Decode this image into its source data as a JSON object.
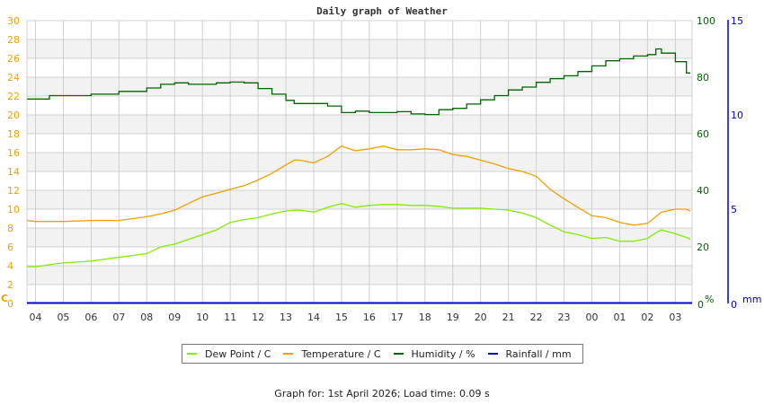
{
  "title": "Daily graph of Weather",
  "footer": "Graph for: 1st April 2026; Load time: 0.09 s",
  "colors": {
    "dew_point": "#80ee00",
    "temperature": "#f0a000",
    "humidity": "#006400",
    "rainfall": "#0000cc",
    "band": "#f2f2f2",
    "grid": "#d0d0d0"
  },
  "legend": [
    {
      "label": "Dew Point / C",
      "color": "#80ee00"
    },
    {
      "label": "Temperature / C",
      "color": "#f0a000"
    },
    {
      "label": "Humidity / %",
      "color": "#006400"
    },
    {
      "label": "Rainfall / mm",
      "color": "#0000cc"
    }
  ],
  "chart_data": {
    "type": "line",
    "title": "Daily graph of Weather",
    "xlabel": "",
    "x_ticks": [
      "04",
      "05",
      "06",
      "07",
      "08",
      "09",
      "10",
      "11",
      "12",
      "13",
      "14",
      "15",
      "16",
      "17",
      "18",
      "19",
      "20",
      "21",
      "22",
      "23",
      "00",
      "01",
      "02",
      "03"
    ],
    "axes": {
      "left": {
        "label": "C",
        "ticks": [
          0,
          2,
          4,
          6,
          8,
          10,
          12,
          14,
          16,
          18,
          20,
          22,
          24,
          26,
          28,
          30
        ],
        "ylim": [
          0,
          30
        ],
        "color": "#f0a000"
      },
      "right1": {
        "label": "%",
        "ticks": [
          0,
          20,
          40,
          60,
          80,
          100
        ],
        "ylim": [
          0,
          100
        ],
        "color": "#006400"
      },
      "right2": {
        "label": "mm",
        "ticks": [
          0,
          5,
          10,
          15
        ],
        "ylim": [
          0,
          15
        ],
        "color": "#0000cc"
      }
    },
    "grid": true,
    "legend_position": "bottom",
    "x": [
      -0.3,
      0,
      0.5,
      1,
      2,
      3,
      4,
      4.5,
      5,
      5.5,
      6,
      6.5,
      7,
      7.5,
      8,
      8.5,
      9,
      9.3,
      9.5,
      10,
      10.5,
      11,
      11.5,
      12,
      12.5,
      13,
      13.5,
      14,
      14.5,
      15,
      15.5,
      16,
      16.5,
      17,
      17.5,
      18,
      18.5,
      19,
      19.5,
      20,
      20.5,
      21,
      21.5,
      22,
      22.3,
      22.5,
      23,
      23.4,
      23.6
    ],
    "x_note": "hours offset from 04:00 (x tick '04' = 0)",
    "series": [
      {
        "name": "Temperature / C",
        "axis": "left",
        "color": "#f0a000",
        "values": [
          8.8,
          8.7,
          8.7,
          8.7,
          8.8,
          8.8,
          9.2,
          9.5,
          9.9,
          10.6,
          11.3,
          11.7,
          12.1,
          12.5,
          13.1,
          13.8,
          14.7,
          15.2,
          15.2,
          14.9,
          15.6,
          16.7,
          16.2,
          16.4,
          16.7,
          16.3,
          16.3,
          16.4,
          16.3,
          15.8,
          15.6,
          15.2,
          14.8,
          14.3,
          14.0,
          13.5,
          12.1,
          11.1,
          10.2,
          9.3,
          9.1,
          8.6,
          8.3,
          8.5,
          9.2,
          9.7,
          10.0,
          10.0,
          9.8
        ]
      },
      {
        "name": "Dew Point / C",
        "axis": "left",
        "color": "#80ee00",
        "values": [
          3.9,
          3.9,
          4.1,
          4.3,
          4.5,
          4.9,
          5.3,
          6.0,
          6.3,
          6.8,
          7.3,
          7.8,
          8.6,
          8.9,
          9.1,
          9.5,
          9.8,
          9.9,
          9.9,
          9.7,
          10.2,
          10.6,
          10.2,
          10.4,
          10.5,
          10.5,
          10.4,
          10.4,
          10.3,
          10.1,
          10.1,
          10.1,
          10.0,
          9.9,
          9.6,
          9.1,
          8.3,
          7.6,
          7.3,
          6.9,
          7.0,
          6.6,
          6.6,
          6.9,
          7.5,
          7.8,
          7.4,
          7.0,
          6.8
        ]
      },
      {
        "name": "Humidity / %",
        "axis": "right1",
        "color": "#006400",
        "values": [
          72.3,
          72.3,
          73.5,
          73.5,
          74.0,
          75.0,
          76.2,
          77.5,
          78.0,
          77.5,
          77.5,
          78.0,
          78.3,
          78.0,
          76.0,
          74.0,
          71.8,
          70.7,
          70.7,
          70.7,
          69.8,
          67.5,
          68.0,
          67.5,
          67.5,
          67.8,
          67.0,
          66.8,
          68.5,
          69.0,
          70.5,
          72.0,
          73.5,
          75.5,
          76.5,
          78.2,
          79.5,
          80.5,
          82.0,
          84.0,
          85.8,
          86.5,
          87.5,
          88.0,
          90.0,
          88.5,
          85.5,
          81.5,
          81.5
        ]
      },
      {
        "name": "Rainfall / mm",
        "axis": "right2",
        "color": "#0000cc",
        "values": [
          0,
          0,
          0,
          0,
          0,
          0,
          0,
          0,
          0,
          0,
          0,
          0,
          0,
          0,
          0,
          0,
          0,
          0,
          0,
          0,
          0,
          0,
          0,
          0,
          0,
          0,
          0,
          0,
          0,
          0,
          0,
          0,
          0,
          0,
          0,
          0,
          0,
          0,
          0,
          0,
          0,
          0,
          0,
          0,
          0,
          0,
          0,
          0,
          0
        ]
      }
    ]
  }
}
